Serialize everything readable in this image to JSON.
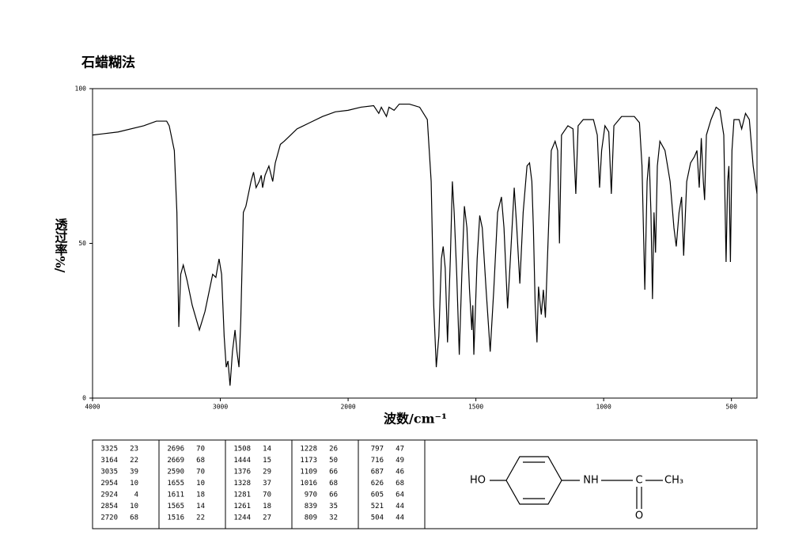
{
  "chart_data": {
    "type": "line",
    "title": "石蜡糊法",
    "xlabel": "波数/cm⁻¹",
    "ylabel": "透过率%/",
    "color": "#000000",
    "xlim": [
      4000,
      400
    ],
    "xticks": [
      4000,
      3000,
      2000,
      1500,
      1000,
      500
    ],
    "ylim": [
      0,
      100
    ],
    "yticks": [
      0,
      50,
      100
    ],
    "x": [
      4000,
      3800,
      3600,
      3500,
      3420,
      3400,
      3360,
      3340,
      3325,
      3310,
      3290,
      3260,
      3220,
      3164,
      3120,
      3080,
      3060,
      3035,
      3010,
      2990,
      2970,
      2954,
      2940,
      2924,
      2905,
      2885,
      2870,
      2854,
      2840,
      2820,
      2800,
      2760,
      2740,
      2720,
      2696,
      2680,
      2669,
      2650,
      2620,
      2590,
      2570,
      2530,
      2500,
      2450,
      2400,
      2300,
      2200,
      2100,
      2000,
      1950,
      1900,
      1880,
      1870,
      1850,
      1840,
      1820,
      1800,
      1760,
      1720,
      1690,
      1675,
      1665,
      1655,
      1645,
      1635,
      1628,
      1620,
      1611,
      1600,
      1592,
      1585,
      1575,
      1565,
      1555,
      1545,
      1535,
      1525,
      1516,
      1512,
      1508,
      1495,
      1485,
      1475,
      1460,
      1444,
      1430,
      1415,
      1400,
      1390,
      1376,
      1365,
      1350,
      1340,
      1328,
      1315,
      1300,
      1290,
      1281,
      1275,
      1268,
      1261,
      1255,
      1248,
      1244,
      1236,
      1228,
      1220,
      1205,
      1190,
      1180,
      1173,
      1165,
      1140,
      1120,
      1109,
      1100,
      1080,
      1040,
      1025,
      1016,
      1008,
      995,
      980,
      970,
      960,
      930,
      880,
      860,
      850,
      839,
      830,
      822,
      815,
      809,
      803,
      797,
      790,
      780,
      760,
      740,
      725,
      716,
      705,
      695,
      687,
      675,
      660,
      645,
      635,
      626,
      618,
      610,
      605,
      598,
      580,
      560,
      545,
      530,
      521,
      515,
      510,
      504,
      498,
      490,
      470,
      460,
      445,
      430,
      415,
      400
    ],
    "values": [
      85,
      86,
      88,
      89.5,
      89.5,
      88,
      80,
      60,
      23,
      40,
      43,
      38,
      30,
      22,
      28,
      36,
      40,
      39,
      45,
      40,
      20,
      10,
      12,
      4,
      15,
      22,
      15,
      10,
      25,
      60,
      62,
      70,
      73,
      68,
      70,
      72,
      68,
      72,
      75,
      70,
      76,
      82,
      83,
      85,
      87,
      89,
      91,
      92.5,
      93,
      94,
      94.5,
      92,
      94,
      91,
      94,
      93,
      95,
      95,
      94,
      90,
      70,
      30,
      10,
      20,
      45,
      49,
      42,
      18,
      45,
      70,
      60,
      40,
      14,
      40,
      62,
      55,
      35,
      22,
      30,
      14,
      45,
      59,
      55,
      35,
      15,
      35,
      60,
      65,
      55,
      29,
      45,
      68,
      55,
      37,
      60,
      75,
      76,
      70,
      55,
      30,
      18,
      36,
      30,
      27,
      35,
      26,
      45,
      80,
      83,
      80,
      50,
      85,
      88,
      87,
      66,
      88,
      90,
      90,
      85,
      68,
      80,
      88,
      86,
      66,
      88,
      91,
      91,
      89,
      75,
      35,
      70,
      78,
      60,
      32,
      60,
      47,
      75,
      83,
      80,
      70,
      55,
      49,
      60,
      65,
      46,
      70,
      76,
      78,
      80,
      68,
      84,
      70,
      64,
      85,
      90,
      94,
      93,
      85,
      44,
      70,
      75,
      44,
      80,
      90,
      90,
      87,
      92,
      90,
      75,
      66
    ]
  },
  "peak_table": [
    [
      3325,
      23
    ],
    [
      3164,
      22
    ],
    [
      3035,
      39
    ],
    [
      2954,
      10
    ],
    [
      2924,
      4
    ],
    [
      2854,
      10
    ],
    [
      2720,
      68
    ],
    [
      2696,
      70
    ],
    [
      2669,
      68
    ],
    [
      2590,
      70
    ],
    [
      1655,
      10
    ],
    [
      1611,
      18
    ],
    [
      1565,
      14
    ],
    [
      1516,
      22
    ],
    [
      1508,
      14
    ],
    [
      1444,
      15
    ],
    [
      1376,
      29
    ],
    [
      1328,
      37
    ],
    [
      1281,
      70
    ],
    [
      1261,
      18
    ],
    [
      1244,
      27
    ],
    [
      1228,
      26
    ],
    [
      1173,
      50
    ],
    [
      1109,
      66
    ],
    [
      1016,
      68
    ],
    [
      970,
      66
    ],
    [
      839,
      35
    ],
    [
      809,
      32
    ],
    [
      797,
      47
    ],
    [
      716,
      49
    ],
    [
      687,
      46
    ],
    [
      626,
      68
    ],
    [
      605,
      64
    ],
    [
      521,
      44
    ],
    [
      504,
      44
    ]
  ],
  "structure": {
    "labels": [
      "HO",
      "NH",
      "C",
      "CH₃",
      "O"
    ]
  }
}
